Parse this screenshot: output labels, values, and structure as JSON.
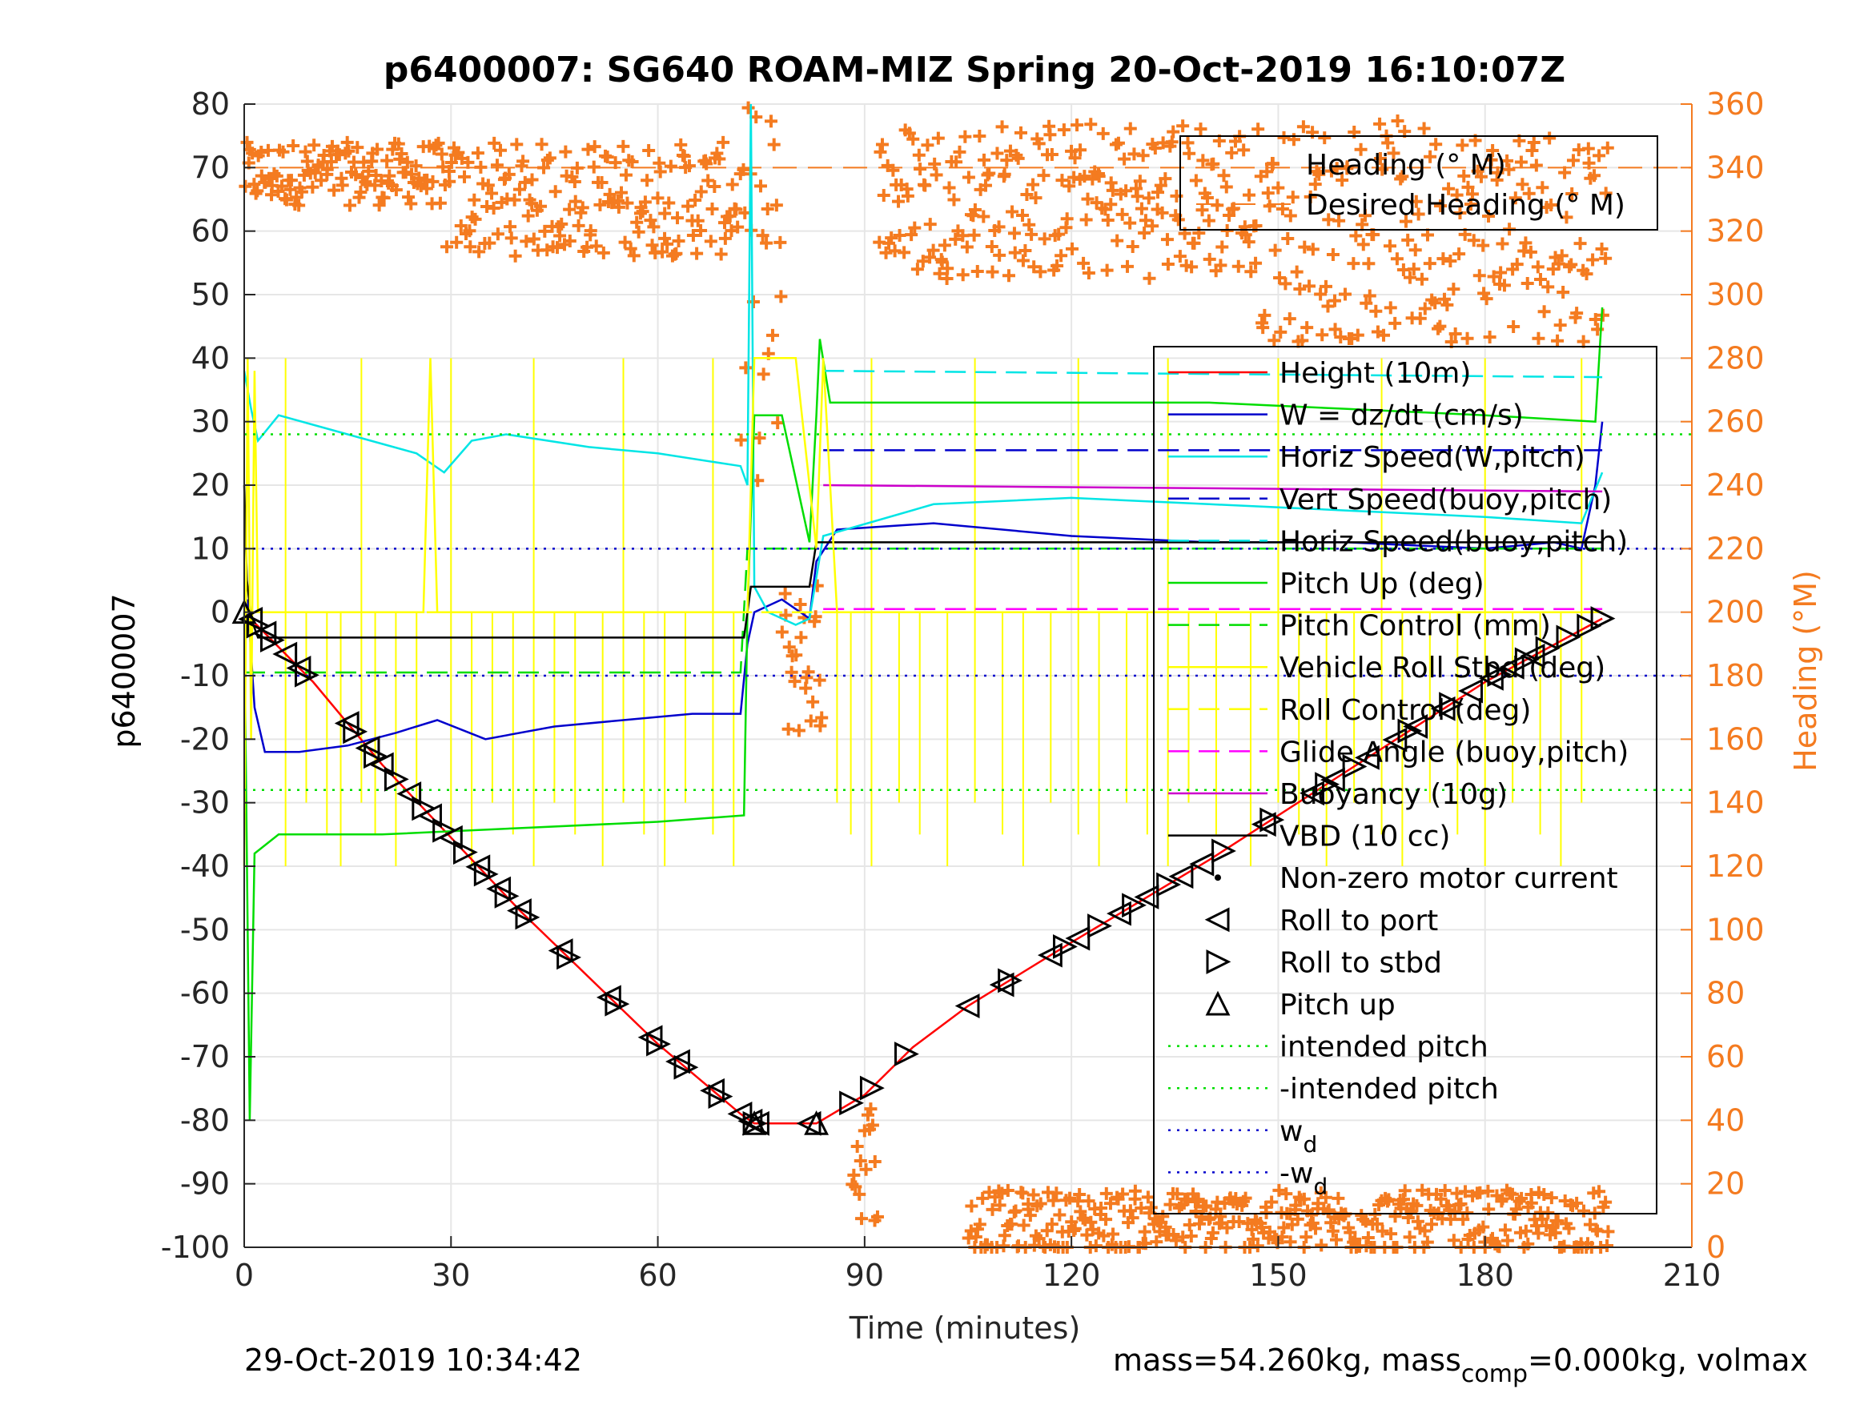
{
  "chart_data": {
    "type": "line",
    "title": "p6400007: SG640 ROAM-MIZ Spring 20-Oct-2019 16:10:07Z",
    "xlabel": "Time (minutes)",
    "ylabel": "p6400007",
    "y2label": "Heading (°M)",
    "xlim": [
      0,
      210
    ],
    "ylim": [
      -100,
      80
    ],
    "y2lim": [
      0,
      360
    ],
    "xticks": [
      "0",
      "30",
      "60",
      "90",
      "120",
      "150",
      "180",
      "210"
    ],
    "yticks": [
      "80",
      "70",
      "60",
      "50",
      "40",
      "30",
      "20",
      "10",
      "0",
      "-10",
      "-20",
      "-30",
      "-40",
      "-50",
      "-60",
      "-70",
      "-80",
      "-90",
      "-100"
    ],
    "y2ticks": [
      "360",
      "340",
      "320",
      "300",
      "280",
      "260",
      "240",
      "220",
      "200",
      "180",
      "160",
      "140",
      "120",
      "100",
      "80",
      "60",
      "40",
      "20",
      "0"
    ],
    "grid": true,
    "footer_left": "29-Oct-2019 10:34:42",
    "footer_right": {
      "pre": "mass=54.260kg, mass",
      "sub": "comp",
      "post": "=0.000kg, volmax"
    },
    "colors": {
      "heading": "#f47b20",
      "y2axis": "#f47b20",
      "axis": "#262626",
      "grid": "#e6e6e6"
    },
    "legend_heading": {
      "placement": "top-right",
      "entries": [
        "Heading (° M)",
        "Desired Heading (° M)"
      ]
    },
    "legend_main": {
      "placement": "right",
      "entries": [
        {
          "label": "Height (10m)",
          "color": "#ff0000",
          "style": "solid"
        },
        {
          "label": "W = dz/dt (cm/s)",
          "color": "#0000cc",
          "style": "solid"
        },
        {
          "label": "Horiz Speed(W,pitch)",
          "color": "#00e5e5",
          "style": "solid"
        },
        {
          "label": "Vert Speed(buoy,pitch)",
          "color": "#0000cc",
          "style": "dashed"
        },
        {
          "label": "Horiz Speed(buoy,pitch)",
          "color": "#00e5e5",
          "style": "dashed"
        },
        {
          "label": "Pitch Up (deg)",
          "color": "#00dd00",
          "style": "solid"
        },
        {
          "label": "Pitch Control (mm)",
          "color": "#00dd00",
          "style": "dashed"
        },
        {
          "label": "Vehicle Roll Stbd (deg)",
          "color": "#ffff00",
          "style": "solid"
        },
        {
          "label": "Roll Control (deg)",
          "color": "#ffff00",
          "style": "dashed"
        },
        {
          "label": "Glide Angle (buoy,pitch)",
          "color": "#ff00ff",
          "style": "dashed"
        },
        {
          "label": "Buoyancy (10g)",
          "color": "#cc00cc",
          "style": "solid"
        },
        {
          "label": "VBD (10 cc)",
          "color": "#000000",
          "style": "solid"
        },
        {
          "label": "Non-zero motor current",
          "color": "#000000",
          "style": "dot"
        },
        {
          "label": "Roll to port",
          "color": "#000000",
          "style": "tri-left"
        },
        {
          "label": "Roll to stbd",
          "color": "#000000",
          "style": "tri-right"
        },
        {
          "label": "Pitch up",
          "color": "#000000",
          "style": "tri-up"
        },
        {
          "label": "intended pitch",
          "color": "#00dd00",
          "style": "dotted"
        },
        {
          "label": "-intended pitch",
          "color": "#00dd00",
          "style": "dotted"
        },
        {
          "label": "w",
          "sub": "d",
          "color": "#0000cc",
          "style": "dotted"
        },
        {
          "label": "-w",
          "sub": "d",
          "color": "#0000cc",
          "style": "dotted"
        }
      ]
    },
    "series": [
      {
        "name": "Height (10m)",
        "color": "#ff0000",
        "style": "solid",
        "axis": "left",
        "x": [
          0,
          10,
          20,
          40,
          60,
          72,
          74,
          83,
          90,
          97,
          105,
          120,
          140,
          160,
          180,
          197
        ],
        "y": [
          0,
          -11,
          -24,
          -47,
          -68,
          -79,
          -80.5,
          -80.5,
          -76,
          -68.5,
          -62,
          -52,
          -39,
          -25,
          -11,
          -1
        ]
      },
      {
        "name": "W = dz/dt (cm/s)",
        "color": "#0000cc",
        "style": "solid",
        "axis": "left",
        "x": [
          0,
          0.5,
          1.5,
          3,
          8,
          15,
          22,
          28,
          35,
          45,
          55,
          65,
          72,
          73,
          74,
          78,
          82,
          83,
          86,
          100,
          120,
          140,
          160,
          180,
          190,
          194,
          196,
          197
        ],
        "y": [
          0,
          2,
          -15,
          -22,
          -22,
          -21,
          -19,
          -17,
          -20,
          -18,
          -17,
          -16,
          -16,
          -5,
          0,
          2,
          -1,
          8,
          13,
          14,
          12,
          11,
          11,
          10,
          11,
          10,
          20,
          30
        ]
      },
      {
        "name": "Horiz Speed(W,pitch)",
        "color": "#00e5e5",
        "style": "solid",
        "axis": "left",
        "x": [
          0,
          1,
          2,
          5,
          15,
          25,
          29,
          33,
          38,
          50,
          60,
          72,
          73,
          73.5,
          74,
          76,
          80,
          82,
          84,
          100,
          120,
          140,
          160,
          180,
          194,
          197
        ],
        "y": [
          38,
          32,
          27,
          31,
          28,
          25,
          22,
          27,
          28,
          26,
          25,
          23,
          20,
          80,
          4,
          0,
          -2,
          -1,
          12,
          17,
          18,
          17,
          16,
          15,
          14,
          22
        ]
      },
      {
        "name": "Pitch Up (deg)",
        "color": "#00dd00",
        "style": "solid",
        "axis": "left",
        "x": [
          0,
          0.8,
          1.5,
          5,
          20,
          40,
          60,
          72.5,
          73,
          74,
          78,
          82,
          83,
          83.5,
          85,
          100,
          120,
          140,
          160,
          180,
          196,
          197
        ],
        "y": [
          0,
          -80,
          -38,
          -35,
          -35,
          -34,
          -33,
          -32,
          0,
          31,
          31,
          11,
          31,
          43,
          33,
          33,
          33,
          33,
          32,
          31,
          30,
          48
        ]
      },
      {
        "name": "Pitch Control (mm)",
        "color": "#00dd00",
        "style": "dashed",
        "axis": "left",
        "x": [
          0,
          72,
          73,
          82,
          83,
          197
        ],
        "y": [
          -9.5,
          -9.5,
          10,
          10,
          10,
          10
        ]
      },
      {
        "name": "Vert Speed(buoy,pitch)",
        "color": "#0000cc",
        "style": "dashed",
        "axis": "left",
        "x": [
          84,
          197
        ],
        "y": [
          25.5,
          25.5
        ]
      },
      {
        "name": "Horiz Speed(buoy,pitch)",
        "color": "#00e5e5",
        "style": "dashed",
        "axis": "left",
        "x": [
          84,
          197
        ],
        "y": [
          38,
          37
        ]
      },
      {
        "name": "Buoyancy (10g)",
        "color": "#cc00cc",
        "style": "solid",
        "axis": "left",
        "x": [
          84,
          197
        ],
        "y": [
          20,
          19
        ]
      },
      {
        "name": "Glide Angle (buoy,pitch)",
        "color": "#ff00ff",
        "style": "dashed",
        "axis": "left",
        "x": [
          84,
          197
        ],
        "y": [
          0.5,
          0.5
        ]
      },
      {
        "name": "VBD (10 cc)",
        "color": "#000000",
        "style": "solid",
        "axis": "left",
        "x": [
          0,
          0.4,
          1,
          2,
          72.5,
          73.5,
          74,
          82,
          83,
          197
        ],
        "y": [
          20,
          5,
          -1,
          -4,
          -4,
          4,
          4,
          4,
          11,
          11
        ]
      },
      {
        "name": "Vehicle Roll Stbd (deg)",
        "color": "#ffff00",
        "style": "solid",
        "axis": "left",
        "x": [
          0,
          0.5,
          1,
          1.5,
          2,
          5,
          10,
          20,
          26,
          27,
          28,
          29,
          35,
          45,
          55,
          65,
          70,
          72,
          73,
          74,
          80,
          83,
          84,
          86,
          90,
          100,
          120,
          140,
          160,
          180,
          197
        ],
        "y": [
          -40,
          40,
          -20,
          38,
          0,
          0,
          0,
          0,
          0,
          40,
          0,
          0,
          0,
          0,
          0,
          0,
          0,
          0,
          0,
          40,
          40,
          10,
          40,
          0,
          0,
          0,
          0,
          0,
          0,
          0,
          0
        ]
      },
      {
        "name": "Roll Control (deg)",
        "color": "#ffff00",
        "style": "dashed",
        "axis": "left",
        "x": [
          0,
          197
        ],
        "y": [
          0,
          0
        ]
      }
    ],
    "roll_spikes_yellow_x": [
      6,
      9,
      12,
      14,
      17,
      19,
      22,
      25,
      30,
      33,
      36,
      39,
      42,
      45,
      48,
      52,
      55,
      58,
      61,
      64,
      68,
      71,
      86,
      88,
      91,
      95,
      98,
      102,
      106,
      110,
      113,
      117,
      121,
      124,
      128,
      131,
      134,
      137,
      141,
      146,
      150,
      153,
      157,
      161,
      165,
      168,
      172,
      176,
      180,
      184,
      188,
      191,
      194
    ],
    "reference_lines": [
      {
        "name": "intended pitch",
        "y": 28,
        "color": "#00dd00",
        "style": "dotted"
      },
      {
        "name": "-intended pitch",
        "y": -28,
        "color": "#00dd00",
        "style": "dotted"
      },
      {
        "name": "w_d",
        "y": 10,
        "color": "#0000cc",
        "style": "dotted"
      },
      {
        "name": "-w_d",
        "y": -10,
        "color": "#0000cc",
        "style": "dotted"
      }
    ],
    "desired_heading": {
      "name": "Desired Heading (° M)",
      "value": 340,
      "axis": "right"
    },
    "heading_clusters": [
      {
        "x0": 0,
        "x1": 28,
        "center": 338,
        "spread": 10
      },
      {
        "x0": 28,
        "x1": 72,
        "center": 330,
        "spread": 18
      },
      {
        "x0": 72,
        "x1": 78,
        "center": 300,
        "spread": 60
      },
      {
        "x0": 78,
        "x1": 84,
        "center": 185,
        "spread": 25
      },
      {
        "x0": 88,
        "x1": 92,
        "center": 28,
        "spread": 20
      },
      {
        "x0": 92,
        "x1": 146,
        "center": 330,
        "spread": 25
      },
      {
        "x0": 146,
        "x1": 198,
        "center": 320,
        "spread": 35
      },
      {
        "x0": 105,
        "x1": 198,
        "center": 8,
        "spread": 10
      }
    ],
    "markers": {
      "roll_port_x": [
        1,
        3,
        6,
        8,
        15,
        18,
        20,
        24,
        27,
        30,
        34,
        37,
        40,
        46,
        53,
        59,
        63,
        68,
        72,
        73.5,
        74.5,
        82,
        105,
        110,
        117,
        121,
        127,
        131,
        136,
        139,
        148,
        155,
        158,
        163,
        167,
        170,
        174,
        178,
        181,
        184,
        187
      ],
      "roll_stbd_x": [
        2,
        4,
        9,
        16,
        19,
        22,
        26,
        29,
        32,
        35,
        38,
        41,
        47,
        54,
        60,
        64,
        69,
        74,
        88,
        91,
        96,
        111,
        119,
        124,
        129,
        134,
        142,
        149,
        157,
        161,
        169,
        175,
        182,
        186,
        189,
        192,
        195,
        197
      ],
      "pitch_up_x": [
        0,
        74,
        83
      ]
    }
  }
}
